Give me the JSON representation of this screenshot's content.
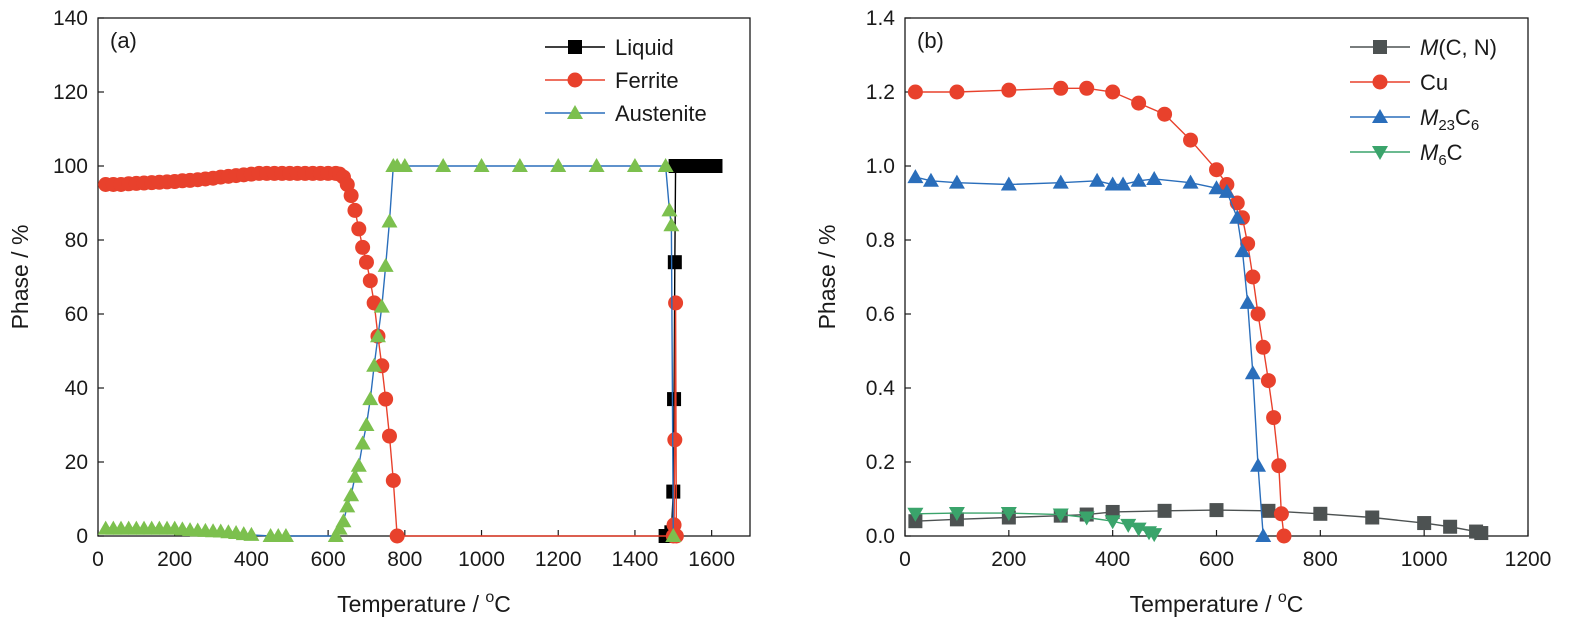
{
  "chart_data": [
    {
      "type": "line",
      "panel_label": "(a)",
      "xlabel": "Temperature / ",
      "xlabel_unit_sup": "o",
      "xlabel_unit": "C",
      "ylabel": "Phase / %",
      "xlim": [
        0,
        1700
      ],
      "ylim": [
        0,
        140
      ],
      "xticks": [
        "0",
        "200",
        "400",
        "600",
        "800",
        "1000",
        "1200",
        "1400",
        "1600"
      ],
      "yticks": [
        "0",
        "20",
        "40",
        "60",
        "80",
        "100",
        "120",
        "140"
      ],
      "legend_position": "top-right",
      "series": [
        {
          "name": "Liquid",
          "name_parts": [
            {
              "t": "Liquid"
            }
          ],
          "color": "#000000",
          "marker": "square",
          "x": [
            1480,
            1490,
            1495,
            1500,
            1502,
            1504,
            1506,
            1508,
            1510,
            1515,
            1520,
            1530,
            1540,
            1550,
            1560,
            1570,
            1580,
            1590,
            1600,
            1610
          ],
          "y": [
            0,
            0,
            1,
            12,
            37,
            74,
            100,
            100,
            100,
            100,
            100,
            100,
            100,
            100,
            100,
            100,
            100,
            100,
            100,
            100
          ]
        },
        {
          "name": "Ferrite",
          "name_parts": [
            {
              "t": "Ferrite"
            }
          ],
          "color": "#e8412c",
          "marker": "circle",
          "x": [
            20,
            40,
            60,
            80,
            100,
            120,
            140,
            160,
            180,
            200,
            220,
            240,
            260,
            280,
            300,
            320,
            340,
            360,
            380,
            400,
            420,
            440,
            460,
            480,
            500,
            520,
            540,
            560,
            580,
            600,
            620,
            630,
            640,
            650,
            660,
            670,
            680,
            690,
            700,
            710,
            720,
            730,
            740,
            750,
            760,
            770,
            780,
            1500,
            1502,
            1504,
            1506,
            1508
          ],
          "y": [
            95,
            95,
            95,
            95.2,
            95.3,
            95.4,
            95.5,
            95.6,
            95.7,
            95.8,
            96,
            96.1,
            96.3,
            96.5,
            96.7,
            97,
            97.2,
            97.4,
            97.6,
            97.8,
            98,
            98,
            98,
            98,
            98,
            98,
            98,
            98,
            98,
            98,
            98,
            97.8,
            97,
            95,
            92,
            88,
            83,
            78,
            74,
            69,
            63,
            54,
            46,
            37,
            27,
            15,
            0,
            0,
            3,
            26,
            63,
            0
          ]
        },
        {
          "name": "Austenite",
          "name_parts": [
            {
              "t": "Austenite"
            }
          ],
          "color": "#7cc04e",
          "lineColor": "#2a6ebb",
          "marker": "triangle-up",
          "x": [
            20,
            40,
            60,
            80,
            100,
            120,
            140,
            160,
            180,
            200,
            220,
            240,
            260,
            280,
            300,
            320,
            340,
            360,
            380,
            400,
            450,
            470,
            490,
            620,
            630,
            640,
            650,
            660,
            670,
            680,
            690,
            700,
            710,
            720,
            730,
            740,
            750,
            760,
            770,
            780,
            800,
            900,
            1000,
            1100,
            1200,
            1300,
            1400,
            1480,
            1490,
            1495,
            1500
          ],
          "y": [
            2,
            2,
            2,
            2,
            2,
            2,
            2,
            2,
            2,
            2,
            1.8,
            1.6,
            1.5,
            1.4,
            1.3,
            1.2,
            1,
            0.8,
            0.5,
            0.3,
            0,
            0,
            0,
            0,
            2,
            4,
            8,
            11,
            16,
            19,
            25,
            30,
            37,
            46,
            54,
            62,
            73,
            85,
            100,
            100,
            100,
            100,
            100,
            100,
            100,
            100,
            100,
            100,
            88,
            84,
            0
          ]
        }
      ]
    },
    {
      "type": "line",
      "panel_label": "(b)",
      "xlabel": "Temperature / ",
      "xlabel_unit_sup": "o",
      "xlabel_unit": "C",
      "ylabel": "Phase / %",
      "xlim": [
        0,
        1200
      ],
      "ylim": [
        0,
        1.4
      ],
      "xticks": [
        "0",
        "200",
        "400",
        "600",
        "800",
        "1000",
        "1200"
      ],
      "yticks": [
        "0.0",
        "0.2",
        "0.4",
        "0.6",
        "0.8",
        "1.0",
        "1.2",
        "1.4"
      ],
      "legend_position": "top-right",
      "series": [
        {
          "name": "M(C, N)",
          "name_parts": [
            {
              "t": "M",
              "i": true
            },
            {
              "t": "(C, N)"
            }
          ],
          "color": "#4d5252",
          "marker": "square",
          "x": [
            20,
            100,
            200,
            300,
            350,
            400,
            500,
            600,
            700,
            800,
            900,
            1000,
            1050,
            1100,
            1110
          ],
          "y": [
            0.04,
            0.045,
            0.05,
            0.055,
            0.058,
            0.065,
            0.068,
            0.07,
            0.068,
            0.06,
            0.05,
            0.035,
            0.025,
            0.012,
            0.008
          ]
        },
        {
          "name": "Cu",
          "name_parts": [
            {
              "t": "Cu"
            }
          ],
          "color": "#e8412c",
          "marker": "circle",
          "x": [
            20,
            100,
            200,
            300,
            350,
            400,
            450,
            500,
            550,
            600,
            620,
            640,
            650,
            660,
            670,
            680,
            690,
            700,
            710,
            720,
            725,
            730
          ],
          "y": [
            1.2,
            1.2,
            1.205,
            1.21,
            1.21,
            1.2,
            1.17,
            1.14,
            1.07,
            0.99,
            0.95,
            0.9,
            0.86,
            0.79,
            0.7,
            0.6,
            0.51,
            0.42,
            0.32,
            0.19,
            0.06,
            0.0
          ]
        },
        {
          "name": "M23C6",
          "name_parts": [
            {
              "t": "M",
              "i": true
            },
            {
              "t": "23",
              "sub": true
            },
            {
              "t": "C"
            },
            {
              "t": "6",
              "sub": true
            }
          ],
          "color": "#2a6ebb",
          "marker": "triangle-up",
          "x": [
            20,
            50,
            100,
            200,
            300,
            370,
            400,
            420,
            450,
            480,
            550,
            600,
            620,
            640,
            650,
            660,
            670,
            680,
            690
          ],
          "y": [
            0.97,
            0.96,
            0.955,
            0.95,
            0.955,
            0.96,
            0.95,
            0.95,
            0.96,
            0.965,
            0.955,
            0.94,
            0.93,
            0.86,
            0.77,
            0.63,
            0.44,
            0.19,
            0.0
          ]
        },
        {
          "name": "M6C",
          "name_parts": [
            {
              "t": "M",
              "i": true
            },
            {
              "t": "6",
              "sub": true
            },
            {
              "t": "C"
            }
          ],
          "color": "#3aa46b",
          "marker": "triangle-down",
          "x": [
            20,
            100,
            200,
            300,
            350,
            400,
            430,
            450,
            470,
            480
          ],
          "y": [
            0.06,
            0.062,
            0.062,
            0.058,
            0.05,
            0.04,
            0.03,
            0.02,
            0.01,
            0.005
          ]
        }
      ]
    }
  ]
}
